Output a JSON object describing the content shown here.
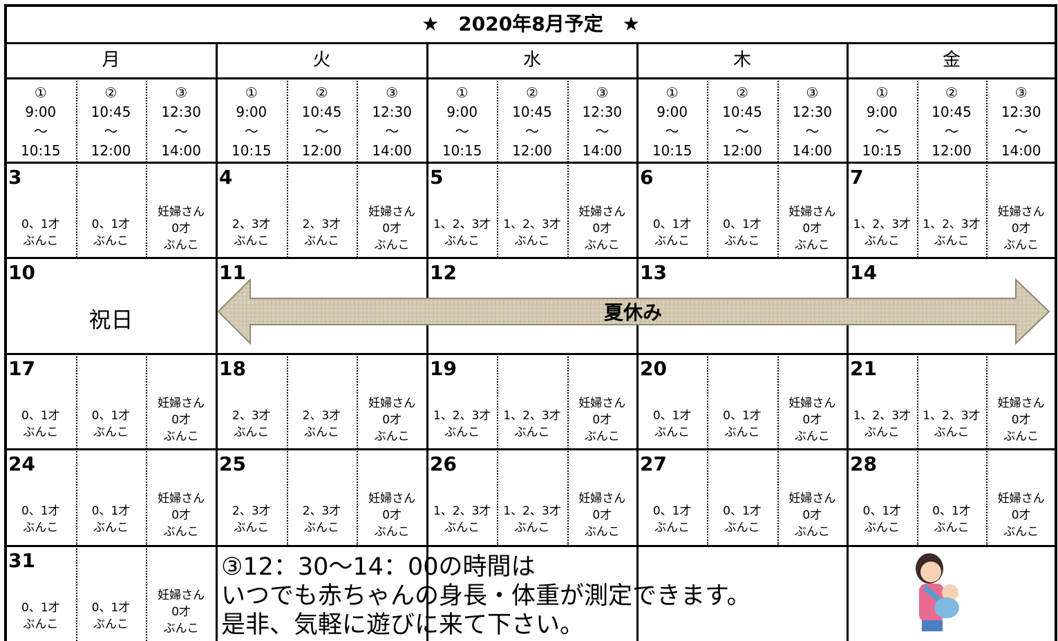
{
  "header": {
    "title": "★　2020年8月予定　★"
  },
  "weekdays": [
    "月",
    "火",
    "水",
    "木",
    "金"
  ],
  "slots": [
    {
      "number": "①",
      "start": "9:00",
      "separator": "～",
      "end": "10:15"
    },
    {
      "number": "②",
      "start": "10:45",
      "separator": "～",
      "end": "12:00"
    },
    {
      "number": "③",
      "start": "12:30",
      "separator": "～",
      "end": "14:00"
    }
  ],
  "weeks": [
    {
      "days": [
        {
          "date": "3",
          "cells": [
            [
              "0、1才",
              "ぶんこ"
            ],
            [
              "0、1才",
              "ぶんこ"
            ],
            [
              "妊婦さん",
              "0才",
              "ぶんこ"
            ]
          ]
        },
        {
          "date": "4",
          "cells": [
            [
              "2、3才",
              "ぶんこ"
            ],
            [
              "2、3才",
              "ぶんこ"
            ],
            [
              "妊婦さん",
              "0才",
              "ぶんこ"
            ]
          ]
        },
        {
          "date": "5",
          "cells": [
            [
              "1、2、3才",
              "ぶんこ"
            ],
            [
              "1、2、3才",
              "ぶんこ"
            ],
            [
              "妊婦さん",
              "0才",
              "ぶんこ"
            ]
          ]
        },
        {
          "date": "6",
          "cells": [
            [
              "0、1才",
              "ぶんこ"
            ],
            [
              "0、1才",
              "ぶんこ"
            ],
            [
              "妊婦さん",
              "0才",
              "ぶんこ"
            ]
          ]
        },
        {
          "date": "7",
          "cells": [
            [
              "1、2、3才",
              "ぶんこ"
            ],
            [
              "1、2、3才",
              "ぶんこ"
            ],
            [
              "妊婦さん",
              "0才",
              "ぶんこ"
            ]
          ]
        }
      ]
    },
    {
      "days": [
        {
          "date": "10",
          "holiday": "祝日"
        },
        {
          "date": "11"
        },
        {
          "date": "12"
        },
        {
          "date": "13"
        },
        {
          "date": "14"
        }
      ],
      "banner": "夏休み"
    },
    {
      "days": [
        {
          "date": "17",
          "cells": [
            [
              "0、1才",
              "ぶんこ"
            ],
            [
              "0、1才",
              "ぶんこ"
            ],
            [
              "妊婦さん",
              "0才",
              "ぶんこ"
            ]
          ]
        },
        {
          "date": "18",
          "cells": [
            [
              "2、3才",
              "ぶんこ"
            ],
            [
              "2、3才",
              "ぶんこ"
            ],
            [
              "妊婦さん",
              "0才",
              "ぶんこ"
            ]
          ]
        },
        {
          "date": "19",
          "cells": [
            [
              "1、2、3才",
              "ぶんこ"
            ],
            [
              "1、2、3才",
              "ぶんこ"
            ],
            [
              "妊婦さん",
              "0才",
              "ぶんこ"
            ]
          ]
        },
        {
          "date": "20",
          "cells": [
            [
              "0、1才",
              "ぶんこ"
            ],
            [
              "0、1才",
              "ぶんこ"
            ],
            [
              "妊婦さん",
              "0才",
              "ぶんこ"
            ]
          ]
        },
        {
          "date": "21",
          "cells": [
            [
              "1、2、3才",
              "ぶんこ"
            ],
            [
              "1、2、3才",
              "ぶんこ"
            ],
            [
              "妊婦さん",
              "0才",
              "ぶんこ"
            ]
          ]
        }
      ]
    },
    {
      "days": [
        {
          "date": "24",
          "cells": [
            [
              "0、1才",
              "ぶんこ"
            ],
            [
              "0、1才",
              "ぶんこ"
            ],
            [
              "妊婦さん",
              "0才",
              "ぶんこ"
            ]
          ]
        },
        {
          "date": "25",
          "cells": [
            [
              "2、3才",
              "ぶんこ"
            ],
            [
              "2、3才",
              "ぶんこ"
            ],
            [
              "妊婦さん",
              "0才",
              "ぶんこ"
            ]
          ]
        },
        {
          "date": "26",
          "cells": [
            [
              "1、2、3才",
              "ぶんこ"
            ],
            [
              "1、2、3才",
              "ぶんこ"
            ],
            [
              "妊婦さん",
              "0才",
              "ぶんこ"
            ]
          ]
        },
        {
          "date": "27",
          "cells": [
            [
              "0、1才",
              "ぶんこ"
            ],
            [
              "0、1才",
              "ぶんこ"
            ],
            [
              "妊婦さん",
              "0才",
              "ぶんこ"
            ]
          ]
        },
        {
          "date": "28",
          "cells": [
            [
              "0、1才",
              "ぶんこ"
            ],
            [
              "0、1才",
              "ぶんこ"
            ],
            [
              "妊婦さん",
              "0才",
              "ぶんこ"
            ]
          ]
        }
      ]
    },
    {
      "days": [
        {
          "date": "31",
          "cells": [
            [
              "0、1才",
              "ぶんこ"
            ],
            [
              "0、1才",
              "ぶんこ"
            ],
            [
              "妊婦さん",
              "0才",
              "ぶんこ"
            ]
          ]
        }
      ],
      "note": [
        "③12：30～14：00の時間は",
        "いつでも赤ちゃんの身長・体重が測定できます。",
        "是非、気軽に遊びに来て下さい。"
      ]
    }
  ]
}
